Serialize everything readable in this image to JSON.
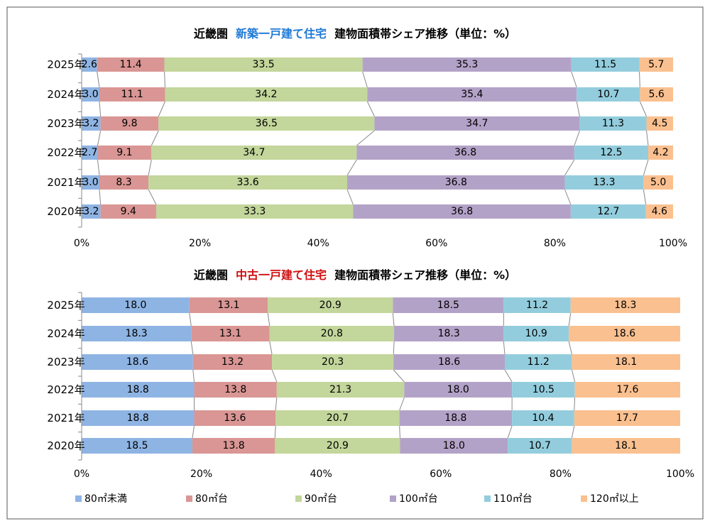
{
  "chart_data": [
    {
      "type": "bar",
      "stacked": true,
      "orientation": "horizontal",
      "title": {
        "prefix": "近畿圏",
        "highlight": "新築一戸建て住宅",
        "suffix": "建物面積帯シェア推移（単位：%）",
        "highlight_color": "#1f7ad6"
      },
      "categories": [
        "2025年",
        "2024年",
        "2023年",
        "2022年",
        "2021年",
        "2020年"
      ],
      "xlim": [
        0,
        100
      ],
      "xticks": [
        "0%",
        "20%",
        "40%",
        "60%",
        "80%",
        "100%"
      ],
      "series": [
        {
          "name": "80㎡未満",
          "values": [
            2.6,
            3.0,
            3.2,
            2.7,
            3.0,
            3.2
          ]
        },
        {
          "name": "80㎡台",
          "values": [
            11.4,
            11.1,
            9.8,
            9.1,
            8.3,
            9.4
          ]
        },
        {
          "name": "90㎡台",
          "values": [
            33.5,
            34.2,
            36.5,
            34.7,
            33.6,
            33.3
          ]
        },
        {
          "name": "100㎡台",
          "values": [
            35.3,
            35.4,
            34.7,
            36.8,
            36.8,
            36.8
          ]
        },
        {
          "name": "110㎡台",
          "values": [
            11.5,
            10.7,
            11.3,
            12.5,
            13.3,
            12.7
          ]
        },
        {
          "name": "120㎡以上",
          "values": [
            5.7,
            5.6,
            4.5,
            4.2,
            5.0,
            4.6
          ]
        }
      ]
    },
    {
      "type": "bar",
      "stacked": true,
      "orientation": "horizontal",
      "title": {
        "prefix": "近畿圏",
        "highlight": "中古一戸建て住宅",
        "suffix": "建物面積帯シェア推移（単位：%）",
        "highlight_color": "#d01010"
      },
      "categories": [
        "2025年",
        "2024年",
        "2023年",
        "2022年",
        "2021年",
        "2020年"
      ],
      "xlim": [
        0,
        100
      ],
      "xticks": [
        "0%",
        "20%",
        "40%",
        "60%",
        "80%",
        "100%"
      ],
      "series": [
        {
          "name": "80㎡未満",
          "values": [
            18.0,
            18.3,
            18.6,
            18.8,
            18.8,
            18.5
          ]
        },
        {
          "name": "80㎡台",
          "values": [
            13.1,
            13.1,
            13.2,
            13.8,
            13.6,
            13.8
          ]
        },
        {
          "name": "90㎡台",
          "values": [
            20.9,
            20.8,
            20.3,
            21.3,
            20.7,
            20.9
          ]
        },
        {
          "name": "100㎡台",
          "values": [
            18.5,
            18.3,
            18.6,
            18.0,
            18.8,
            18.0
          ]
        },
        {
          "name": "110㎡台",
          "values": [
            11.2,
            10.9,
            11.2,
            10.5,
            10.4,
            10.7
          ]
        },
        {
          "name": "120㎡以上",
          "values": [
            18.3,
            18.6,
            18.1,
            17.6,
            17.7,
            18.1
          ]
        }
      ]
    }
  ],
  "colors": [
    "#8eb4e3",
    "#d99694",
    "#c3d69b",
    "#b3a2c7",
    "#93cddd",
    "#fac090"
  ],
  "legend": {
    "position": "bottom",
    "items": [
      "80㎡未満",
      "80㎡台",
      "90㎡台",
      "100㎡台",
      "110㎡台",
      "120㎡以上"
    ]
  }
}
